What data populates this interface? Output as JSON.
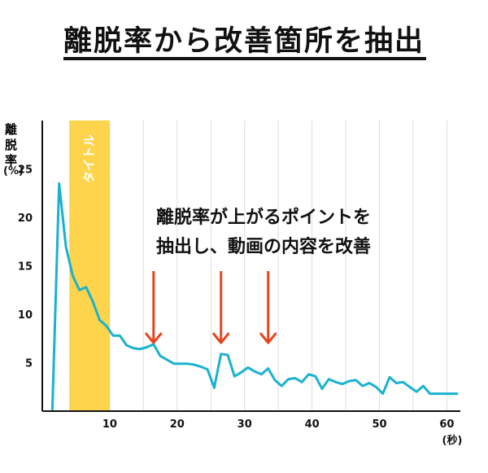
{
  "title": "離脱率から改善箇所を抽出",
  "colors": {
    "line": "#1ab2cf",
    "band": "#fdd44c",
    "arrow": "#e6461f",
    "grid": "#dddddd",
    "axis": "#111111"
  },
  "chart_data": {
    "type": "line",
    "ylabel": "離脱率 (%)",
    "xlabel": "(秒)",
    "xlim": [
      0,
      62
    ],
    "ylim": [
      0,
      30
    ],
    "x_ticks": [
      10,
      20,
      30,
      40,
      50,
      60
    ],
    "y_ticks": [
      5,
      10,
      15,
      20,
      25
    ],
    "band": {
      "label": "タイトル",
      "x_start": 4,
      "x_end": 10
    },
    "annotation": {
      "lines": [
        "離脱率が上がるポイントを",
        "抽出し、動画の内容を改善"
      ],
      "arrow_x": [
        16.5,
        26.5,
        33.5
      ]
    },
    "series": [
      {
        "x": [
          1.5,
          2.5,
          3.5,
          4.5,
          5.5,
          6.5,
          7.5,
          8.5,
          9.5,
          10.5,
          11.5,
          12.5,
          13.5,
          14.5,
          15.5,
          16.5,
          17.5,
          18.5,
          19.5,
          20.5,
          21.5,
          22.5,
          23.5,
          24.5,
          25.5,
          26.5,
          27.5,
          28.5,
          29.5,
          30.5,
          31.5,
          32.5,
          33.5,
          34.5,
          35.5,
          36.5,
          37.5,
          38.5,
          39.5,
          40.5,
          41.5,
          42.5,
          43.5,
          44.5,
          45.5,
          46.5,
          47.5,
          48.5,
          49.5,
          50.5,
          51.5,
          52.5,
          53.5,
          54.5,
          55.5,
          56.5,
          57.5,
          58.5,
          59.5,
          60.5,
          61.5
        ],
        "values": [
          0.2,
          23.5,
          17,
          14,
          12.5,
          12.8,
          11.3,
          9.4,
          8.8,
          7.8,
          7.8,
          6.8,
          6.5,
          6.4,
          6.6,
          6.9,
          5.7,
          5.3,
          4.9,
          4.9,
          4.9,
          4.8,
          4.6,
          4.3,
          2.4,
          5.9,
          5.8,
          3.6,
          4,
          4.5,
          4.1,
          3.8,
          4.4,
          3.2,
          2.6,
          3.3,
          3.4,
          3,
          3.8,
          3.6,
          2.3,
          3.3,
          3,
          2.8,
          3.1,
          3.2,
          2.6,
          2.9,
          2.5,
          1.8,
          3.5,
          2.9,
          3,
          2.5,
          2,
          2.6,
          1.8,
          1.8,
          1.8,
          1.8,
          1.8
        ]
      }
    ]
  }
}
